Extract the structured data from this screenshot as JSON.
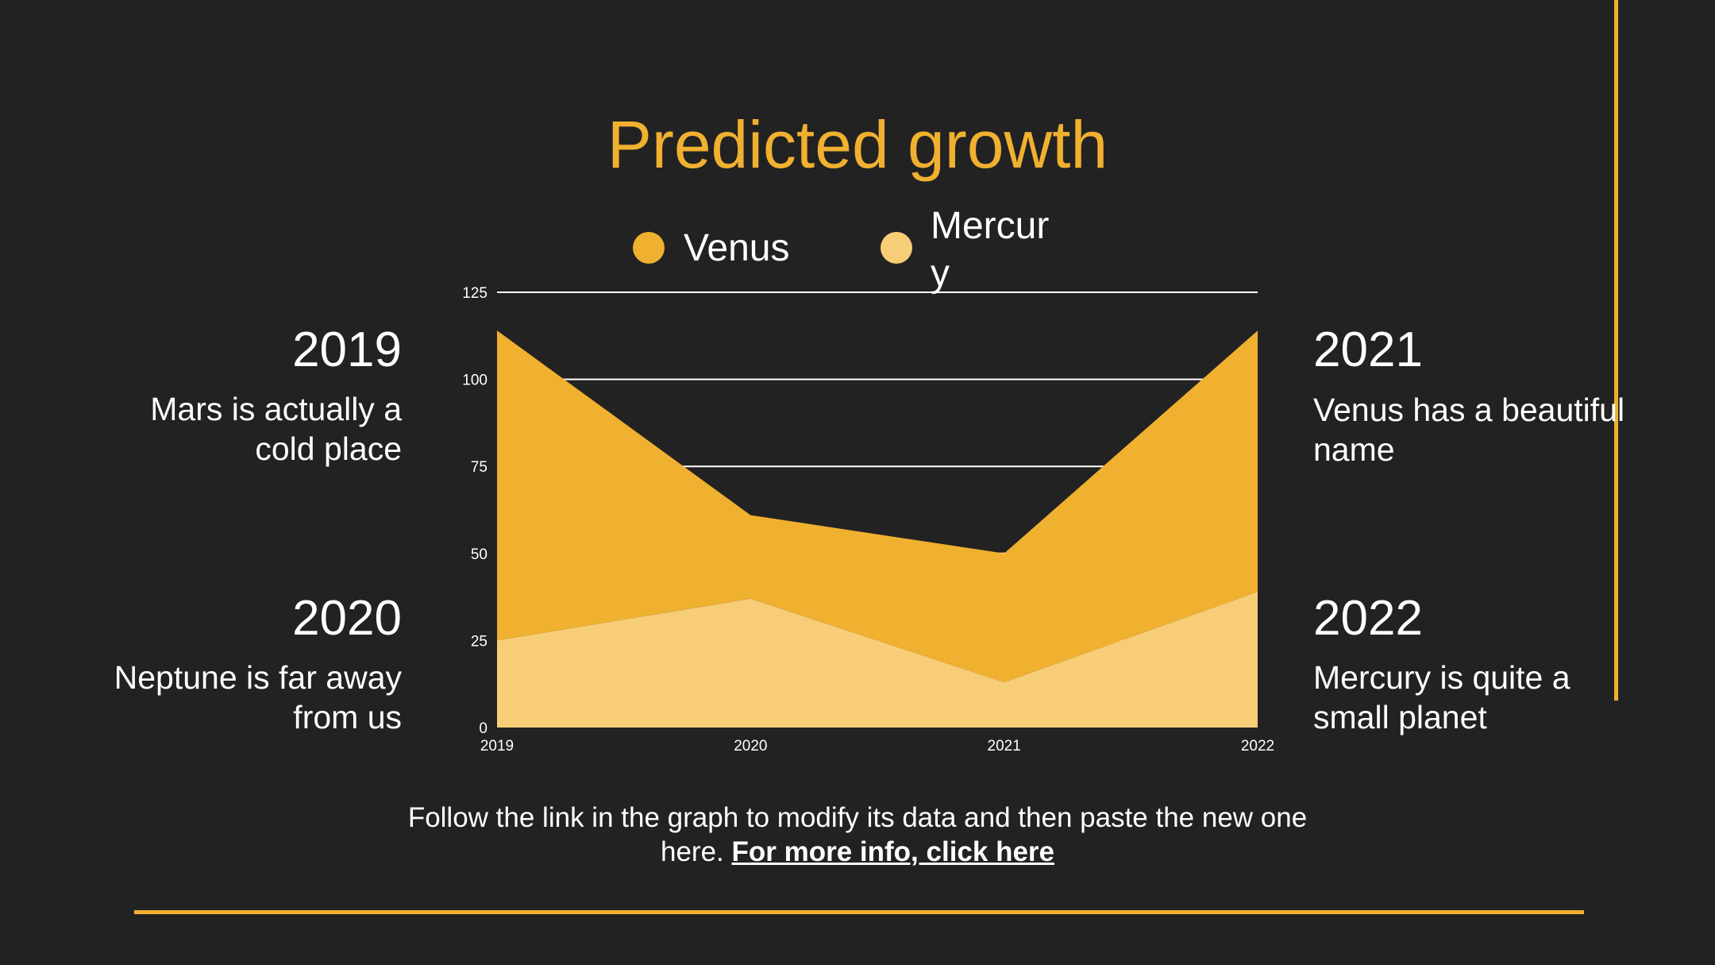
{
  "title": "Predicted growth",
  "legend": [
    {
      "label": "Venus",
      "color": "#f0b030"
    },
    {
      "label": "Mercury",
      "color": "#f8cd77"
    }
  ],
  "notes": [
    {
      "year": "2019",
      "text": "Mars is actually a cold place"
    },
    {
      "year": "2020",
      "text": "Neptune is far away from us"
    },
    {
      "year": "2021",
      "text": "Venus has a beautiful name"
    },
    {
      "year": "2022",
      "text": "Mercury is quite a small planet"
    }
  ],
  "footer": {
    "text": "Follow the link in the graph to modify its data and then paste the new one here.",
    "link": "For more info, click here"
  },
  "chart_data": {
    "type": "area",
    "stacked": true,
    "categories": [
      "2019",
      "2020",
      "2021",
      "2022"
    ],
    "series": [
      {
        "name": "Mercury",
        "values": [
          25,
          37,
          13,
          39
        ],
        "color": "#f8cd77"
      },
      {
        "name": "Venus",
        "values": [
          89,
          24,
          37,
          75
        ],
        "color": "#f0b030"
      }
    ],
    "ylim": [
      0,
      125
    ],
    "yticks": [
      0,
      25,
      50,
      75,
      100,
      125
    ],
    "grid": true,
    "legend_position": "top"
  }
}
